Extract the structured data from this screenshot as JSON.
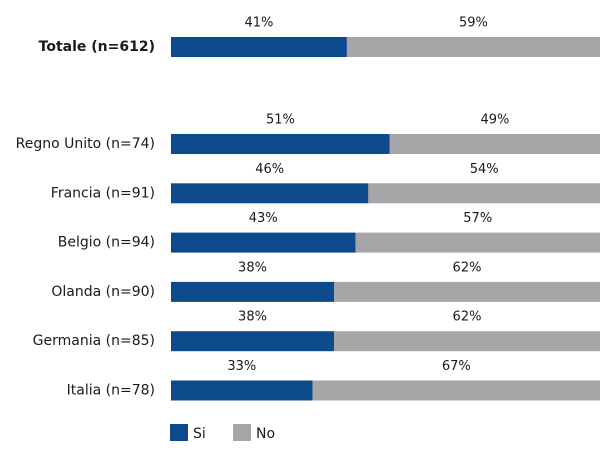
{
  "chart_data": {
    "type": "stacked-bar-horizontal",
    "categories": [
      "Totale (n=612)",
      "Regno Unito (n=74)",
      "Francia (n=91)",
      "Belgio (n=94)",
      "Olanda (n=90)",
      "Germania (n=85)",
      "Italia (n=78)"
    ],
    "series": [
      {
        "name": "Si",
        "color": "#0d4a8c",
        "values": [
          41,
          51,
          46,
          43,
          38,
          38,
          33
        ],
        "value_labels": [
          "41%",
          "51%",
          "46%",
          "43%",
          "38%",
          "38%",
          "33%"
        ]
      },
      {
        "name": "No",
        "color": "#a6a6a8",
        "values": [
          59,
          49,
          54,
          57,
          62,
          62,
          67
        ],
        "value_labels": [
          "59%",
          "49%",
          "54%",
          "57%",
          "62%",
          "62%",
          "67%"
        ]
      }
    ],
    "xlim": [
      0,
      100
    ]
  }
}
